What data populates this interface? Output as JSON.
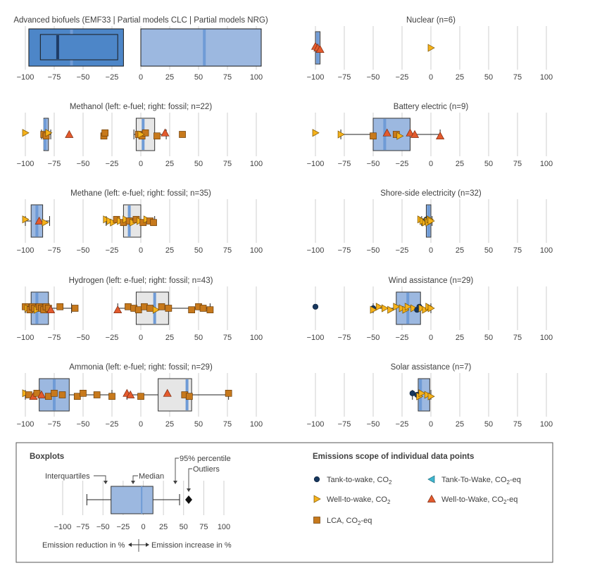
{
  "colors": {
    "box_blue": "#9cb8e0",
    "box_blue_dark": "#4d86c8",
    "box_blue_edge": "#233a5e",
    "box_grey": "#e6e6e6",
    "median_blue": "#6f9bd6",
    "median_dark": "#1f3c66",
    "tank_to_wake": "#17375e",
    "well_to_wake": "#f5b21b",
    "lca": "#c7791c",
    "tank_to_wake_eq": "#3fb6cf",
    "well_to_wake_eq": "#e35a2d",
    "grid": "#cfcfcf",
    "text": "#404040"
  },
  "chart_data": [
    {
      "id": "advanced-biofuels",
      "type": "boxplot",
      "title": "Advanced biofuels (EMF33 | Partial models CLC | Partial models NRG)",
      "xlim": [
        -100,
        100
      ],
      "ticks": [
        -100,
        -75,
        -50,
        -25,
        0,
        25,
        50,
        75,
        100
      ],
      "boxes": [
        {
          "q1": -97,
          "q3": -15,
          "median": -60,
          "style": "blue"
        },
        {
          "q1": -87,
          "q3": -20,
          "median": -72,
          "style": "blue-dark"
        },
        {
          "q1": 0,
          "q3": 105,
          "median": 55,
          "style": "blue"
        }
      ],
      "points": []
    },
    {
      "id": "nuclear",
      "type": "boxplot",
      "title": "Nuclear (n=6)",
      "xlim": [
        -100,
        100
      ],
      "ticks": [
        -100,
        -75,
        -50,
        -25,
        0,
        25,
        50,
        75,
        100
      ],
      "boxes": [
        {
          "q1": -100,
          "q3": -96,
          "median": -98,
          "style": "blue"
        }
      ],
      "points": [
        {
          "x": -100,
          "s": "wtw_eq"
        },
        {
          "x": -98,
          "s": "wtw_eq"
        },
        {
          "x": -96,
          "s": "wtw_eq"
        },
        {
          "x": -97,
          "s": "ltw"
        },
        {
          "x": 0,
          "s": "wtw"
        }
      ]
    },
    {
      "id": "methanol",
      "type": "boxplot",
      "title": "Methanol (left: e-fuel; right: fossil; n=22)",
      "xlim": [
        -100,
        100
      ],
      "ticks": [
        -100,
        -75,
        -50,
        -25,
        0,
        25,
        50,
        75,
        100
      ],
      "boxes": [
        {
          "q1": -84,
          "q3": -80,
          "median": -83,
          "whisker_low": -86,
          "whisker_high": -78,
          "style": "blue"
        },
        {
          "q1": -4,
          "q3": 12,
          "median": 2,
          "whisker_low": -6,
          "whisker_high": 22,
          "style": "grey"
        }
      ],
      "points": [
        {
          "x": -100,
          "s": "wtw"
        },
        {
          "x": -84,
          "s": "lca"
        },
        {
          "x": -82,
          "s": "lca"
        },
        {
          "x": -80,
          "s": "wtw"
        },
        {
          "x": -62,
          "s": "wtw_eq"
        },
        {
          "x": -32,
          "s": "lca"
        },
        {
          "x": -31,
          "s": "lca"
        },
        {
          "x": -2,
          "s": "lca"
        },
        {
          "x": 1,
          "s": "lca"
        },
        {
          "x": 4,
          "s": "lca"
        },
        {
          "x": 0,
          "s": "wtw"
        },
        {
          "x": 14,
          "s": "lca"
        },
        {
          "x": 21,
          "s": "wtw_eq"
        },
        {
          "x": 36,
          "s": "lca"
        }
      ]
    },
    {
      "id": "battery-electric",
      "type": "boxplot",
      "title": "Battery electric (n=9)",
      "xlim": [
        -100,
        100
      ],
      "ticks": [
        -100,
        -75,
        -50,
        -25,
        0,
        25,
        50,
        75,
        100
      ],
      "boxes": [
        {
          "q1": -50,
          "q3": -18,
          "median": -40,
          "whisker_low": -78,
          "whisker_high": 8,
          "style": "blue"
        }
      ],
      "points": [
        {
          "x": -100,
          "s": "wtw"
        },
        {
          "x": -78,
          "s": "wtw"
        },
        {
          "x": -50,
          "s": "lca"
        },
        {
          "x": -38,
          "s": "wtw_eq"
        },
        {
          "x": -30,
          "s": "lca"
        },
        {
          "x": -27,
          "s": "wtw"
        },
        {
          "x": -18,
          "s": "wtw_eq"
        },
        {
          "x": -14,
          "s": "wtw_eq"
        },
        {
          "x": 8,
          "s": "wtw_eq"
        }
      ]
    },
    {
      "id": "methane",
      "type": "boxplot",
      "title": "Methane (left: e-fuel; right: fossil; n=35)",
      "xlim": [
        -100,
        100
      ],
      "ticks": [
        -100,
        -75,
        -50,
        -25,
        0,
        25,
        50,
        75,
        100
      ],
      "boxes": [
        {
          "q1": -95,
          "q3": -85,
          "median": -90,
          "whisker_low": -100,
          "whisker_high": -79,
          "style": "blue"
        },
        {
          "q1": -15,
          "q3": 0,
          "median": -10,
          "whisker_low": -30,
          "whisker_high": 12,
          "style": "grey"
        }
      ],
      "points": [
        {
          "x": -100,
          "s": "wtw"
        },
        {
          "x": -88,
          "s": "wtw_eq"
        },
        {
          "x": -83,
          "s": "wtw"
        },
        {
          "x": -30,
          "s": "wtw"
        },
        {
          "x": -27,
          "s": "wtw"
        },
        {
          "x": -24,
          "s": "wtw"
        },
        {
          "x": -21,
          "s": "lca"
        },
        {
          "x": -18,
          "s": "wtw"
        },
        {
          "x": -15,
          "s": "lca"
        },
        {
          "x": -13,
          "s": "wtw"
        },
        {
          "x": -10,
          "s": "lca"
        },
        {
          "x": -7,
          "s": "wtw"
        },
        {
          "x": -4,
          "s": "lca"
        },
        {
          "x": -1,
          "s": "wtw"
        },
        {
          "x": 2,
          "s": "lca"
        },
        {
          "x": 5,
          "s": "wtw"
        },
        {
          "x": 8,
          "s": "lca"
        },
        {
          "x": 11,
          "s": "lca"
        }
      ]
    },
    {
      "id": "shore-side-electricity",
      "type": "boxplot",
      "title": "Shore-side electricity (n=32)",
      "xlim": [
        -100,
        100
      ],
      "ticks": [
        -100,
        -75,
        -50,
        -25,
        0,
        25,
        50,
        75,
        100
      ],
      "boxes": [
        {
          "q1": -4,
          "q3": 0,
          "median": -2,
          "whisker_low": -8,
          "whisker_high": 1,
          "style": "blue"
        }
      ],
      "points": [
        {
          "x": -9,
          "s": "wtw"
        },
        {
          "x": -7,
          "s": "wtw"
        },
        {
          "x": -5,
          "s": "wtw"
        },
        {
          "x": -4,
          "s": "ttw"
        },
        {
          "x": -3,
          "s": "wtw"
        },
        {
          "x": -2,
          "s": "wtw"
        },
        {
          "x": -1,
          "s": "wtw"
        },
        {
          "x": 0,
          "s": "wtw"
        }
      ]
    },
    {
      "id": "hydrogen",
      "type": "boxplot",
      "title": "Hydrogen (left: e-fuel; right: fossil; n=43)",
      "xlim": [
        -100,
        100
      ],
      "ticks": [
        -100,
        -75,
        -50,
        -25,
        0,
        25,
        50,
        75,
        100
      ],
      "boxes": [
        {
          "q1": -95,
          "q3": -80,
          "median": -90,
          "whisker_low": -100,
          "whisker_high": -60,
          "style": "blue"
        },
        {
          "q1": -4,
          "q3": 24,
          "median": 12,
          "whisker_low": -20,
          "whisker_high": 60,
          "style": "grey"
        }
      ],
      "points": [
        {
          "x": -100,
          "s": "lca"
        },
        {
          "x": -98,
          "s": "wtw"
        },
        {
          "x": -96,
          "s": "lca"
        },
        {
          "x": -94,
          "s": "lca"
        },
        {
          "x": -92,
          "s": "lca"
        },
        {
          "x": -90,
          "s": "wtw"
        },
        {
          "x": -88,
          "s": "lca"
        },
        {
          "x": -86,
          "s": "lca"
        },
        {
          "x": -84,
          "s": "lca"
        },
        {
          "x": -82,
          "s": "lca"
        },
        {
          "x": -80,
          "s": "lca"
        },
        {
          "x": -78,
          "s": "wtw_eq"
        },
        {
          "x": -70,
          "s": "lca"
        },
        {
          "x": -57,
          "s": "lca"
        },
        {
          "x": -20,
          "s": "wtw_eq"
        },
        {
          "x": -11,
          "s": "lca"
        },
        {
          "x": -6,
          "s": "lca"
        },
        {
          "x": -2,
          "s": "lca"
        },
        {
          "x": 3,
          "s": "lca"
        },
        {
          "x": 8,
          "s": "lca"
        },
        {
          "x": 13,
          "s": "wtw"
        },
        {
          "x": 18,
          "s": "lca"
        },
        {
          "x": 24,
          "s": "lca"
        },
        {
          "x": 44,
          "s": "lca"
        },
        {
          "x": 50,
          "s": "lca"
        },
        {
          "x": 54,
          "s": "lca"
        },
        {
          "x": 60,
          "s": "lca"
        }
      ]
    },
    {
      "id": "wind-assistance",
      "type": "boxplot",
      "title": "Wind assistance (n=29)",
      "xlim": [
        -100,
        100
      ],
      "ticks": [
        -100,
        -75,
        -50,
        -25,
        0,
        25,
        50,
        75,
        100
      ],
      "boxes": [
        {
          "q1": -30,
          "q3": -9,
          "median": -20,
          "whisker_low": -50,
          "whisker_high": 0,
          "style": "blue"
        }
      ],
      "points": [
        {
          "x": -100,
          "s": "ttw"
        },
        {
          "x": -50,
          "s": "ttw"
        },
        {
          "x": -50,
          "s": "wtw"
        },
        {
          "x": -45,
          "s": "wtw"
        },
        {
          "x": -40,
          "s": "wtw"
        },
        {
          "x": -35,
          "s": "wtw"
        },
        {
          "x": -30,
          "s": "wtw"
        },
        {
          "x": -25,
          "s": "wtw"
        },
        {
          "x": -22,
          "s": "wtw"
        },
        {
          "x": -20,
          "s": "wtw"
        },
        {
          "x": -15,
          "s": "wtw"
        },
        {
          "x": -12,
          "s": "ttw"
        },
        {
          "x": -10,
          "s": "ttw"
        },
        {
          "x": -8,
          "s": "wtw"
        },
        {
          "x": -5,
          "s": "wtw"
        },
        {
          "x": -2,
          "s": "wtw"
        },
        {
          "x": 0,
          "s": "wtw"
        }
      ]
    },
    {
      "id": "ammonia",
      "type": "boxplot",
      "title": "Ammonia (left: e-fuel; right: fossil; n=29)",
      "xlim": [
        -100,
        100
      ],
      "ticks": [
        -100,
        -75,
        -50,
        -25,
        0,
        25,
        50,
        75,
        100
      ],
      "boxes": [
        {
          "q1": -88,
          "q3": -62,
          "median": -75,
          "whisker_low": -100,
          "whisker_high": -25,
          "style": "blue"
        },
        {
          "q1": 15,
          "q3": 44,
          "median": 40,
          "whisker_low": -12,
          "whisker_high": 76,
          "style": "grey"
        }
      ],
      "points": [
        {
          "x": -100,
          "s": "wtw"
        },
        {
          "x": -97,
          "s": "lca"
        },
        {
          "x": -93,
          "s": "wtw_eq"
        },
        {
          "x": -90,
          "s": "lca"
        },
        {
          "x": -86,
          "s": "wtw_eq"
        },
        {
          "x": -80,
          "s": "lca"
        },
        {
          "x": -75,
          "s": "lca"
        },
        {
          "x": -68,
          "s": "lca"
        },
        {
          "x": -55,
          "s": "lca"
        },
        {
          "x": -50,
          "s": "lca"
        },
        {
          "x": -38,
          "s": "lca"
        },
        {
          "x": -25,
          "s": "lca"
        },
        {
          "x": -12,
          "s": "wtw_eq"
        },
        {
          "x": -9,
          "s": "wtw_eq"
        },
        {
          "x": 0,
          "s": "lca"
        },
        {
          "x": 23,
          "s": "wtw_eq"
        },
        {
          "x": 38,
          "s": "lca"
        },
        {
          "x": 42,
          "s": "lca"
        },
        {
          "x": 76,
          "s": "lca"
        }
      ]
    },
    {
      "id": "solar-assistance",
      "type": "boxplot",
      "title": "Solar assistance (n=7)",
      "xlim": [
        -100,
        100
      ],
      "ticks": [
        -100,
        -75,
        -50,
        -25,
        0,
        25,
        50,
        75,
        100
      ],
      "boxes": [
        {
          "q1": -11,
          "q3": -1,
          "median": -9,
          "whisker_low": -16,
          "whisker_high": 0,
          "style": "blue"
        }
      ],
      "points": [
        {
          "x": -16,
          "s": "ttw"
        },
        {
          "x": -12,
          "s": "ttw"
        },
        {
          "x": -10,
          "s": "wtw"
        },
        {
          "x": -8,
          "s": "wtw"
        },
        {
          "x": -3,
          "s": "wtw"
        },
        {
          "x": 0,
          "s": "wtw"
        }
      ]
    }
  ],
  "legend": {
    "boxplots_title": "Boxplots",
    "interquartiles": "Interquartiles",
    "median": "Median",
    "percentile95": "95% percentile",
    "outliers": "Outliers",
    "ticks": [
      -100,
      -75,
      -50,
      -25,
      0,
      25,
      50,
      75,
      100
    ],
    "emission_reduction": "Emission reduction in %",
    "emission_increase": "Emission increase in %",
    "scope_title": "Emissions scope of individual data points",
    "items": [
      {
        "key": "ttw",
        "label": "Tank-to-wake, CO",
        "sub": "2",
        "suffix": ""
      },
      {
        "key": "ttw_eq",
        "label": "Tank-To-Wake, CO",
        "sub": "2",
        "suffix": "-eq"
      },
      {
        "key": "wtw",
        "label": "Well-to-wake, CO",
        "sub": "2",
        "suffix": ""
      },
      {
        "key": "wtw_eq",
        "label": "Well-to-Wake, CO",
        "sub": "2",
        "suffix": "-eq"
      },
      {
        "key": "lca",
        "label": "LCA, CO",
        "sub": "2",
        "suffix": "-eq"
      }
    ]
  }
}
